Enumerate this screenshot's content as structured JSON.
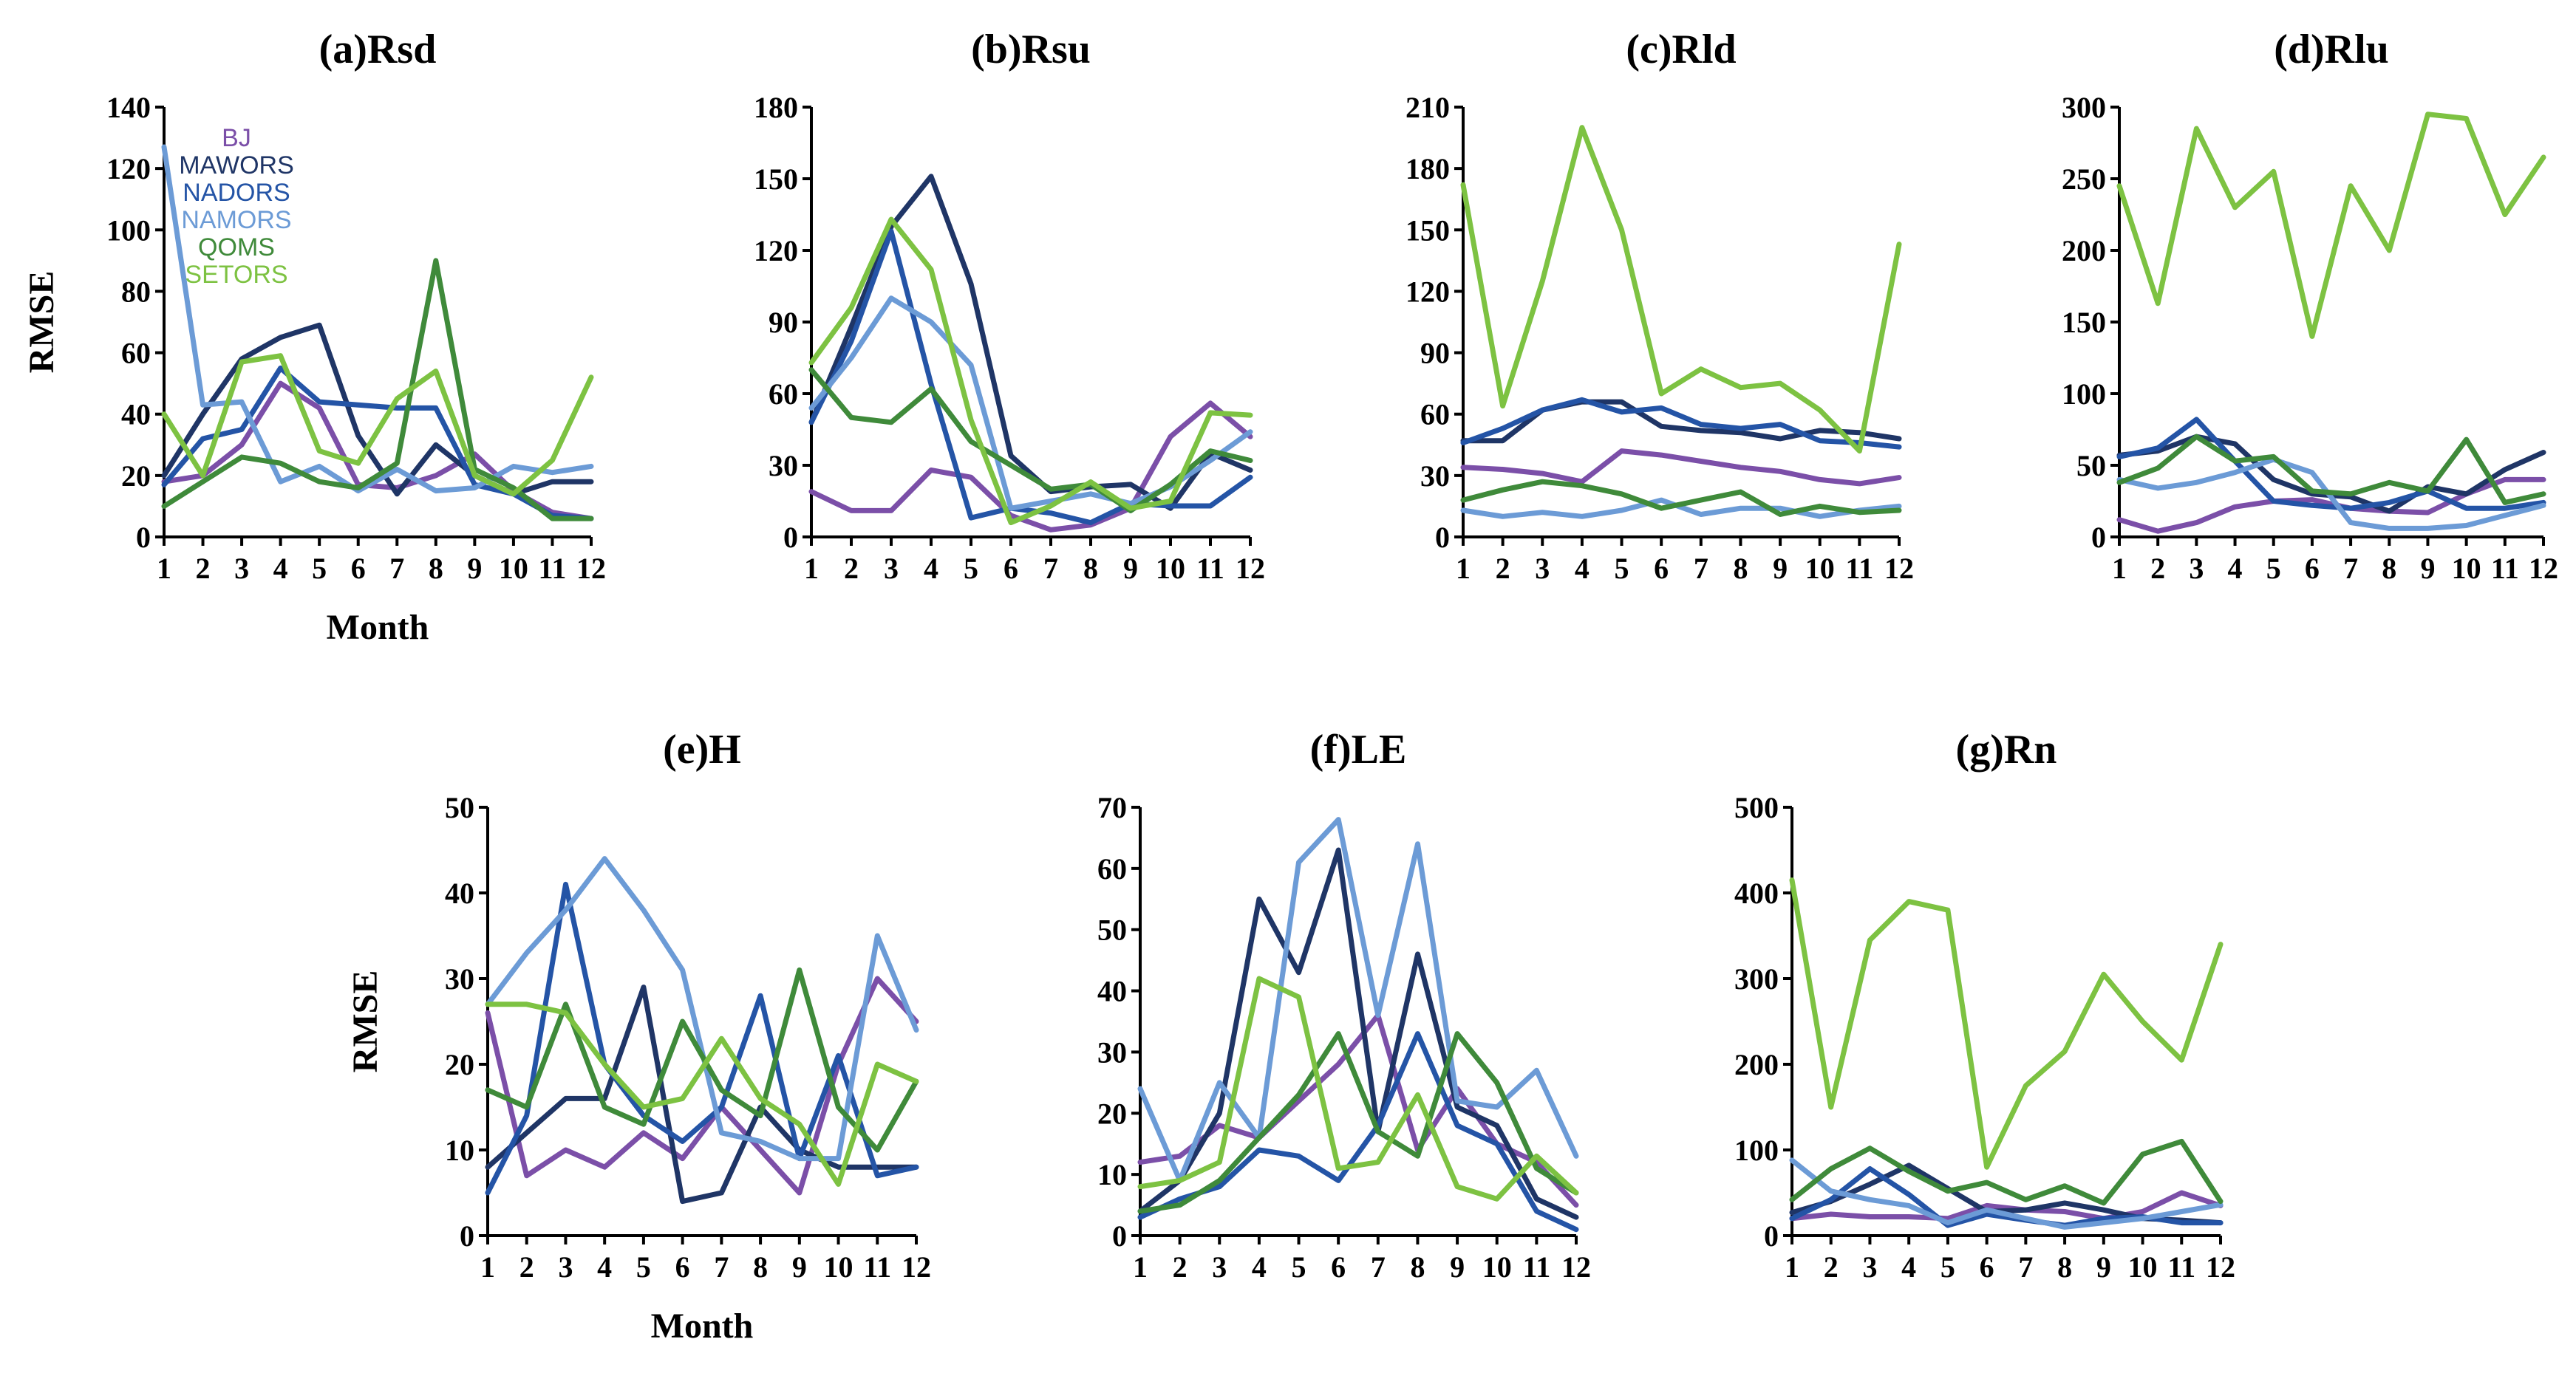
{
  "legend": {
    "series": [
      "BJ",
      "MAWORS",
      "NADORS",
      "NAMORS",
      "QOMS",
      "SETORS"
    ]
  },
  "colors": {
    "BJ": "#7b4fa8",
    "MAWORS": "#1f3566",
    "NADORS": "#2454a6",
    "NAMORS": "#6c9bd6",
    "QOMS": "#3f8a3a",
    "SETORS": "#7dc242"
  },
  "chart_data": [
    {
      "type": "line",
      "title": "(a)Rsd",
      "xlabel": "Month",
      "ylabel": "RMSE",
      "x": [
        1,
        2,
        3,
        4,
        5,
        6,
        7,
        8,
        9,
        10,
        11,
        12
      ],
      "ylim": [
        0,
        140
      ],
      "yticks": [
        0,
        20,
        40,
        60,
        80,
        100,
        120,
        140
      ],
      "series": [
        {
          "name": "BJ",
          "values": [
            18,
            20,
            30,
            50,
            42,
            17,
            16,
            20,
            27,
            15,
            8,
            6
          ]
        },
        {
          "name": "MAWORS",
          "values": [
            20,
            40,
            58,
            65,
            69,
            33,
            14,
            30,
            20,
            14,
            18,
            18
          ]
        },
        {
          "name": "NADORS",
          "values": [
            17,
            32,
            35,
            55,
            44,
            43,
            42,
            42,
            17,
            14,
            7,
            6
          ]
        },
        {
          "name": "NAMORS",
          "values": [
            127,
            43,
            44,
            18,
            23,
            15,
            22,
            15,
            16,
            23,
            21,
            23
          ]
        },
        {
          "name": "QOMS",
          "values": [
            10,
            18,
            26,
            24,
            18,
            16,
            24,
            90,
            22,
            16,
            6,
            6
          ]
        },
        {
          "name": "SETORS",
          "values": [
            40,
            20,
            57,
            59,
            28,
            24,
            45,
            54,
            20,
            14,
            25,
            52
          ]
        }
      ]
    },
    {
      "type": "line",
      "title": "(b)Rsu",
      "xlabel": "",
      "ylabel": "",
      "x": [
        1,
        2,
        3,
        4,
        5,
        6,
        7,
        8,
        9,
        10,
        11,
        12
      ],
      "ylim": [
        0,
        180
      ],
      "yticks": [
        0,
        30,
        60,
        90,
        120,
        150,
        180
      ],
      "series": [
        {
          "name": "BJ",
          "values": [
            19,
            11,
            11,
            28,
            25,
            9,
            3,
            5,
            12,
            42,
            56,
            42
          ]
        },
        {
          "name": "MAWORS",
          "values": [
            48,
            88,
            130,
            151,
            106,
            34,
            19,
            21,
            22,
            12,
            35,
            28
          ]
        },
        {
          "name": "NADORS",
          "values": [
            48,
            82,
            128,
            64,
            8,
            12,
            10,
            6,
            14,
            13,
            13,
            25
          ]
        },
        {
          "name": "NAMORS",
          "values": [
            54,
            75,
            100,
            90,
            72,
            12,
            15,
            18,
            14,
            21,
            32,
            44
          ]
        },
        {
          "name": "QOMS",
          "values": [
            70,
            50,
            48,
            62,
            40,
            30,
            20,
            22,
            11,
            22,
            36,
            32
          ]
        },
        {
          "name": "SETORS",
          "values": [
            73,
            96,
            133,
            112,
            49,
            6,
            13,
            23,
            12,
            15,
            52,
            51
          ]
        }
      ]
    },
    {
      "type": "line",
      "title": "(c)Rld",
      "xlabel": "",
      "ylabel": "",
      "x": [
        1,
        2,
        3,
        4,
        5,
        6,
        7,
        8,
        9,
        10,
        11,
        12
      ],
      "ylim": [
        0,
        210
      ],
      "yticks": [
        0,
        30,
        60,
        90,
        120,
        150,
        180,
        210
      ],
      "series": [
        {
          "name": "BJ",
          "values": [
            34,
            33,
            31,
            27,
            42,
            40,
            37,
            34,
            32,
            28,
            26,
            29
          ]
        },
        {
          "name": "MAWORS",
          "values": [
            47,
            47,
            62,
            66,
            66,
            54,
            52,
            51,
            48,
            52,
            51,
            48
          ]
        },
        {
          "name": "NADORS",
          "values": [
            46,
            53,
            62,
            67,
            61,
            63,
            55,
            53,
            55,
            47,
            46,
            44
          ]
        },
        {
          "name": "NAMORS",
          "values": [
            13,
            10,
            12,
            10,
            13,
            18,
            11,
            14,
            14,
            10,
            13,
            15
          ]
        },
        {
          "name": "QOMS",
          "values": [
            18,
            23,
            27,
            25,
            21,
            14,
            18,
            22,
            11,
            15,
            12,
            13
          ]
        },
        {
          "name": "SETORS",
          "values": [
            172,
            64,
            125,
            200,
            150,
            70,
            82,
            73,
            75,
            62,
            42,
            143
          ]
        }
      ]
    },
    {
      "type": "line",
      "title": "(d)Rlu",
      "xlabel": "",
      "ylabel": "",
      "x": [
        1,
        2,
        3,
        4,
        5,
        6,
        7,
        8,
        9,
        10,
        11,
        12
      ],
      "ylim": [
        0,
        300
      ],
      "yticks": [
        0,
        50,
        100,
        150,
        200,
        250,
        300
      ],
      "series": [
        {
          "name": "BJ",
          "values": [
            12,
            4,
            10,
            21,
            25,
            26,
            20,
            18,
            17,
            30,
            40,
            40
          ]
        },
        {
          "name": "MAWORS",
          "values": [
            57,
            60,
            70,
            65,
            40,
            30,
            28,
            18,
            35,
            30,
            47,
            59
          ]
        },
        {
          "name": "NADORS",
          "values": [
            56,
            62,
            82,
            53,
            25,
            22,
            20,
            24,
            32,
            20,
            20,
            24
          ]
        },
        {
          "name": "NAMORS",
          "values": [
            40,
            34,
            38,
            45,
            54,
            45,
            10,
            6,
            6,
            8,
            15,
            22
          ]
        },
        {
          "name": "QOMS",
          "values": [
            38,
            48,
            70,
            53,
            56,
            32,
            30,
            38,
            32,
            68,
            24,
            30
          ]
        },
        {
          "name": "SETORS",
          "values": [
            245,
            163,
            285,
            230,
            255,
            140,
            245,
            200,
            295,
            292,
            225,
            265
          ]
        }
      ]
    },
    {
      "type": "line",
      "title": "(e)H",
      "xlabel": "Month",
      "ylabel": "RMSE",
      "x": [
        1,
        2,
        3,
        4,
        5,
        6,
        7,
        8,
        9,
        10,
        11,
        12
      ],
      "ylim": [
        0,
        50
      ],
      "yticks": [
        0,
        10,
        20,
        30,
        40,
        50
      ],
      "series": [
        {
          "name": "BJ",
          "values": [
            26,
            7,
            10,
            8,
            12,
            9,
            15,
            10,
            5,
            20,
            30,
            25
          ]
        },
        {
          "name": "MAWORS",
          "values": [
            8,
            12,
            16,
            16,
            29,
            4,
            5,
            15,
            10,
            8,
            8,
            8
          ]
        },
        {
          "name": "NADORS",
          "values": [
            5,
            14,
            41,
            20,
            14,
            11,
            15,
            28,
            9,
            21,
            7,
            8
          ]
        },
        {
          "name": "NAMORS",
          "values": [
            27,
            33,
            38,
            44,
            38,
            31,
            12,
            11,
            9,
            9,
            35,
            24
          ]
        },
        {
          "name": "QOMS",
          "values": [
            17,
            15,
            27,
            15,
            13,
            25,
            17,
            14,
            31,
            15,
            10,
            18
          ]
        },
        {
          "name": "SETORS",
          "values": [
            27,
            27,
            26,
            20,
            15,
            16,
            23,
            16,
            13,
            6,
            20,
            18
          ]
        }
      ]
    },
    {
      "type": "line",
      "title": "(f)LE",
      "xlabel": "",
      "ylabel": "",
      "x": [
        1,
        2,
        3,
        4,
        5,
        6,
        7,
        8,
        9,
        10,
        11,
        12
      ],
      "ylim": [
        0,
        70
      ],
      "yticks": [
        0,
        10,
        20,
        30,
        40,
        50,
        60,
        70
      ],
      "series": [
        {
          "name": "BJ",
          "values": [
            12,
            13,
            18,
            16,
            22,
            28,
            36,
            14,
            24,
            15,
            12,
            5
          ]
        },
        {
          "name": "MAWORS",
          "values": [
            4,
            9,
            20,
            55,
            43,
            63,
            17,
            46,
            21,
            18,
            6,
            3
          ]
        },
        {
          "name": "NADORS",
          "values": [
            3,
            6,
            8,
            14,
            13,
            9,
            18,
            33,
            18,
            15,
            4,
            1
          ]
        },
        {
          "name": "NAMORS",
          "values": [
            24,
            9,
            25,
            16,
            61,
            68,
            36,
            64,
            22,
            21,
            27,
            13
          ]
        },
        {
          "name": "QOMS",
          "values": [
            4,
            5,
            9,
            16,
            23,
            33,
            17,
            13,
            33,
            25,
            11,
            7
          ]
        },
        {
          "name": "SETORS",
          "values": [
            8,
            9,
            12,
            42,
            39,
            11,
            12,
            23,
            8,
            6,
            13,
            7
          ]
        }
      ]
    },
    {
      "type": "line",
      "title": "(g)Rn",
      "xlabel": "",
      "ylabel": "",
      "x": [
        1,
        2,
        3,
        4,
        5,
        6,
        7,
        8,
        9,
        10,
        11,
        12
      ],
      "ylim": [
        0,
        500
      ],
      "yticks": [
        0,
        100,
        200,
        300,
        400,
        500
      ],
      "series": [
        {
          "name": "BJ",
          "values": [
            20,
            25,
            22,
            22,
            20,
            35,
            30,
            28,
            20,
            28,
            50,
            35
          ]
        },
        {
          "name": "MAWORS",
          "values": [
            27,
            40,
            60,
            82,
            55,
            28,
            30,
            38,
            30,
            20,
            18,
            15
          ]
        },
        {
          "name": "NADORS",
          "values": [
            20,
            42,
            78,
            48,
            12,
            25,
            18,
            12,
            20,
            22,
            15,
            15
          ]
        },
        {
          "name": "NAMORS",
          "values": [
            88,
            52,
            42,
            35,
            15,
            30,
            20,
            10,
            15,
            20,
            28,
            36
          ]
        },
        {
          "name": "QOMS",
          "values": [
            42,
            78,
            102,
            75,
            52,
            62,
            42,
            58,
            38,
            95,
            110,
            40
          ]
        },
        {
          "name": "SETORS",
          "values": [
            415,
            150,
            345,
            390,
            380,
            80,
            175,
            215,
            305,
            250,
            205,
            340
          ]
        }
      ]
    }
  ]
}
